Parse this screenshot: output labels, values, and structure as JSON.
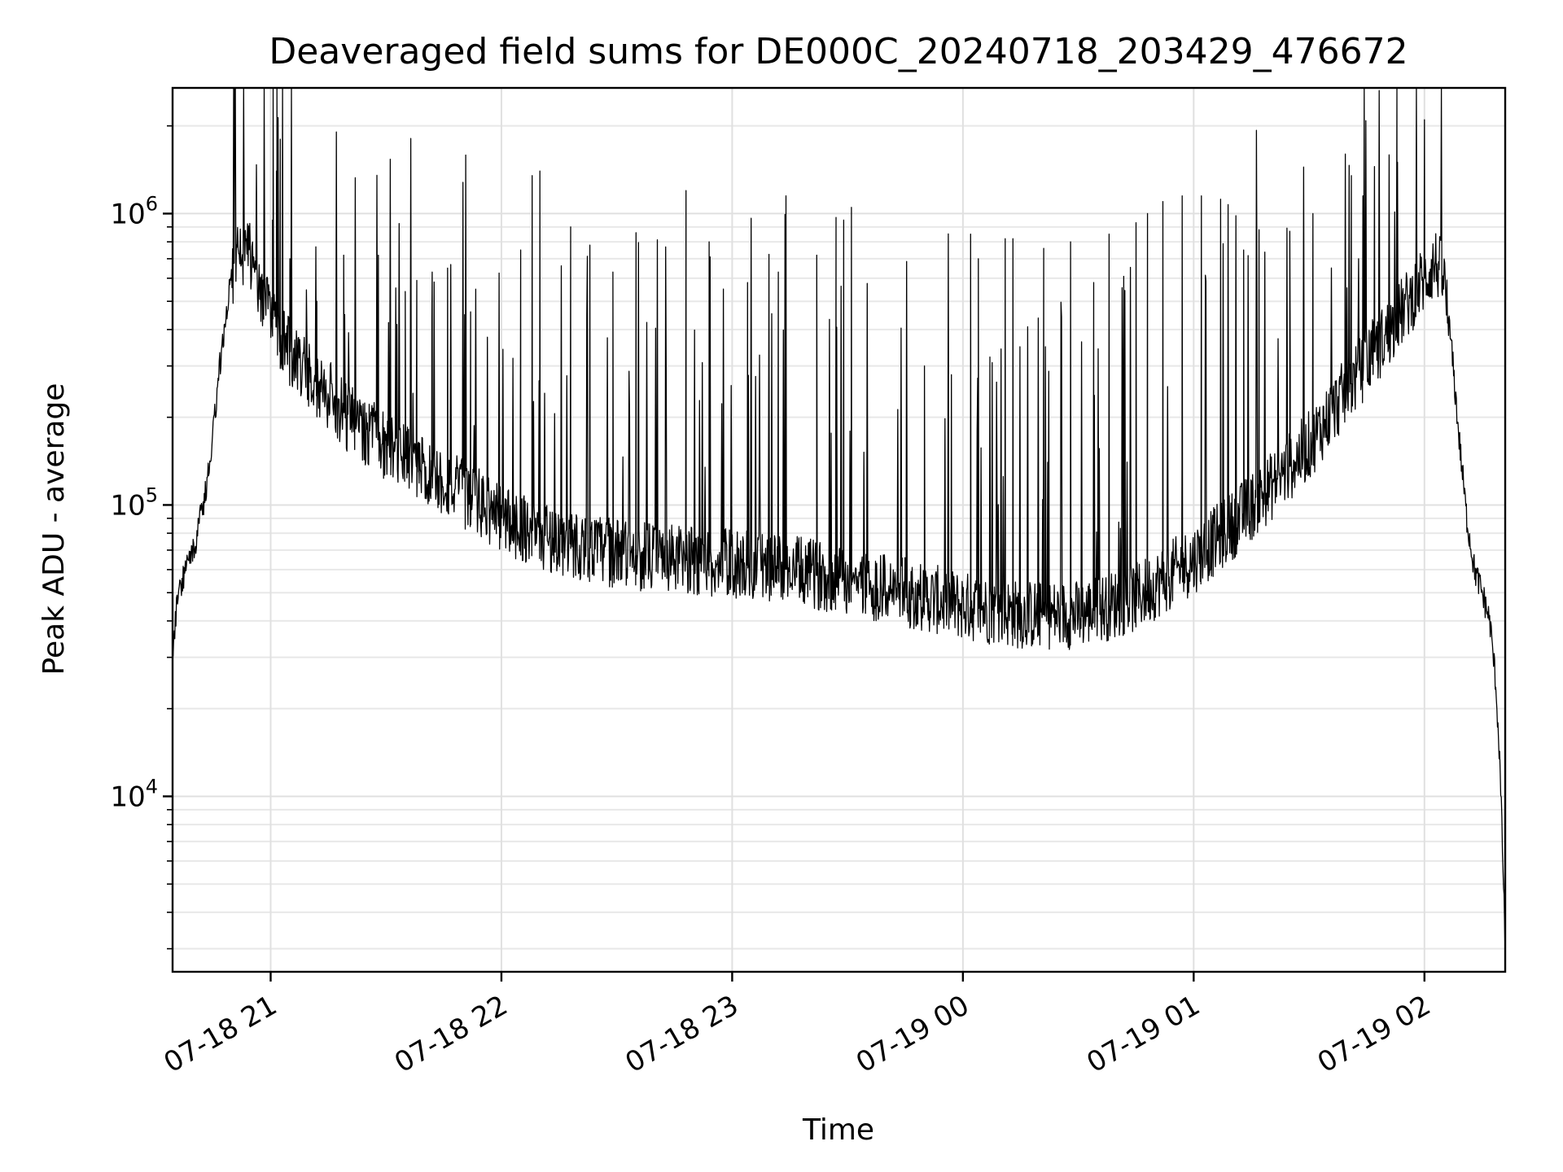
{
  "chart_data": {
    "type": "line",
    "title": "Deaveraged field sums for DE000C_20240718_203429_476672",
    "xlabel": "Time",
    "ylabel": "Peak ADU - average",
    "yscale": "log",
    "grid": "on (major and minor)",
    "legend": "none",
    "xlim": [
      "2024-07-18 20:34:30",
      "2024-07-19 02:21:00"
    ],
    "ylim": [
      2500,
      2700000
    ],
    "x_ticks": [
      {
        "value": "2024-07-18 21:00",
        "label": "07-18 21"
      },
      {
        "value": "2024-07-18 22:00",
        "label": "07-18 22"
      },
      {
        "value": "2024-07-18 23:00",
        "label": "07-18 23"
      },
      {
        "value": "2024-07-19 00:00",
        "label": "07-19 00"
      },
      {
        "value": "2024-07-19 01:00",
        "label": "07-19 01"
      },
      {
        "value": "2024-07-19 02:00",
        "label": "07-19 02"
      }
    ],
    "y_ticks": [
      {
        "value": 10000,
        "base": "10",
        "exp": "4"
      },
      {
        "value": 100000,
        "base": "10",
        "exp": "5"
      },
      {
        "value": 1000000,
        "base": "10",
        "exp": "6"
      }
    ],
    "series": [
      {
        "color": "#000000",
        "baseline": {
          "x": [
            "2024-07-18 20:34:30",
            "2024-07-18 20:35:30",
            "2024-07-18 20:37:00",
            "2024-07-18 20:39:00",
            "2024-07-18 20:41:00",
            "2024-07-18 20:43:00",
            "2024-07-18 20:45:00",
            "2024-07-18 20:47:00",
            "2024-07-18 20:49:00",
            "2024-07-18 20:52:00",
            "2024-07-18 20:54:00",
            "2024-07-18 20:56:00",
            "2024-07-18 20:58:00",
            "2024-07-18 21:00:00",
            "2024-07-18 21:03:00",
            "2024-07-18 21:06:00",
            "2024-07-18 21:10:00",
            "2024-07-18 21:15:00",
            "2024-07-18 21:20:00",
            "2024-07-18 21:30:00",
            "2024-07-18 21:40:00",
            "2024-07-18 21:50:00",
            "2024-07-18 22:00:00",
            "2024-07-18 22:15:00",
            "2024-07-18 22:30:00",
            "2024-07-18 22:45:00",
            "2024-07-18 23:00:00",
            "2024-07-18 23:15:00",
            "2024-07-18 23:30:00",
            "2024-07-18 23:45:00",
            "2024-07-19 00:00:00",
            "2024-07-19 00:15:00",
            "2024-07-19 00:30:00",
            "2024-07-19 00:45:00",
            "2024-07-19 01:00:00",
            "2024-07-19 01:10:00",
            "2024-07-19 01:20:00",
            "2024-07-19 01:30:00",
            "2024-07-19 01:40:00",
            "2024-07-19 01:50:00",
            "2024-07-19 02:00:00",
            "2024-07-19 02:03:00",
            "2024-07-19 02:05:00",
            "2024-07-19 02:07:00",
            "2024-07-19 02:09:00",
            "2024-07-19 02:11:00",
            "2024-07-19 02:13:00",
            "2024-07-19 02:15:00",
            "2024-07-19 02:17:00",
            "2024-07-19 02:18:30",
            "2024-07-19 02:19:30",
            "2024-07-19 02:20:15",
            "2024-07-19 02:21:00"
          ],
          "y": [
            32000,
            45000,
            55000,
            65000,
            80000,
            110000,
            180000,
            320000,
            520000,
            750000,
            750000,
            650000,
            530000,
            450000,
            370000,
            320000,
            280000,
            240000,
            200000,
            160000,
            130000,
            110000,
            90000,
            75000,
            68000,
            65000,
            63000,
            60000,
            55000,
            50000,
            45000,
            42000,
            42000,
            48000,
            65000,
            85000,
            115000,
            160000,
            250000,
            380000,
            600000,
            680000,
            600000,
            350000,
            170000,
            90000,
            60000,
            50000,
            40000,
            25000,
            14000,
            7000,
            3000
          ]
        },
        "spikes": [
          {
            "x": "2024-07-18 21:00:30",
            "y": 950000
          },
          {
            "x": "2024-07-18 21:01:30",
            "y": 1400000
          },
          {
            "x": "2024-07-18 21:02:30",
            "y": 1800000
          },
          {
            "x": "2024-07-18 21:05:00",
            "y": 700000
          },
          {
            "x": "2024-07-18 21:12:00",
            "y": 500000
          },
          {
            "x": "2024-07-18 21:19:00",
            "y": 720000
          },
          {
            "x": "2024-07-18 21:28:00",
            "y": 720000
          },
          {
            "x": "2024-07-18 21:35:00",
            "y": 540000
          },
          {
            "x": "2024-07-18 21:38:00",
            "y": 590000
          },
          {
            "x": "2024-07-18 21:42:00",
            "y": 630000
          },
          {
            "x": "2024-07-18 21:46:00",
            "y": 650000
          },
          {
            "x": "2024-07-18 21:52:00",
            "y": 460000
          },
          {
            "x": "2024-07-18 22:05:00",
            "y": 750000
          },
          {
            "x": "2024-07-18 22:08:00",
            "y": 1350000
          },
          {
            "x": "2024-07-18 22:10:00",
            "y": 1400000
          },
          {
            "x": "2024-07-18 22:18:00",
            "y": 900000
          },
          {
            "x": "2024-07-18 22:23:00",
            "y": 780000
          },
          {
            "x": "2024-07-18 22:29:00",
            "y": 630000
          },
          {
            "x": "2024-07-18 22:35:00",
            "y": 860000
          },
          {
            "x": "2024-07-18 22:48:00",
            "y": 1200000
          },
          {
            "x": "2024-07-18 22:54:00",
            "y": 800000
          },
          {
            "x": "2024-07-18 23:04:00",
            "y": 580000
          },
          {
            "x": "2024-07-18 23:12:00",
            "y": 630000
          },
          {
            "x": "2024-07-18 23:14:00",
            "y": 1150000
          },
          {
            "x": "2024-07-18 23:22:00",
            "y": 720000
          },
          {
            "x": "2024-07-18 23:27:00",
            "y": 970000
          },
          {
            "x": "2024-07-18 23:29:00",
            "y": 950000
          },
          {
            "x": "2024-07-18 23:31:00",
            "y": 1050000
          },
          {
            "x": "2024-07-18 23:50:00",
            "y": 300000
          },
          {
            "x": "2024-07-18 23:57:00",
            "y": 280000
          },
          {
            "x": "2024-07-19 00:02:00",
            "y": 850000
          },
          {
            "x": "2024-07-19 00:04:00",
            "y": 700000
          },
          {
            "x": "2024-07-19 00:11:00",
            "y": 820000
          },
          {
            "x": "2024-07-19 00:13:00",
            "y": 820000
          },
          {
            "x": "2024-07-19 00:21:00",
            "y": 760000
          },
          {
            "x": "2024-07-19 00:28:00",
            "y": 800000
          },
          {
            "x": "2024-07-19 00:34:00",
            "y": 580000
          },
          {
            "x": "2024-07-19 00:38:00",
            "y": 850000
          },
          {
            "x": "2024-07-19 00:45:00",
            "y": 930000
          },
          {
            "x": "2024-07-19 00:48:00",
            "y": 1000000
          },
          {
            "x": "2024-07-19 00:52:00",
            "y": 1100000
          },
          {
            "x": "2024-07-19 00:57:00",
            "y": 1150000
          },
          {
            "x": "2024-07-19 01:02:00",
            "y": 1150000
          },
          {
            "x": "2024-07-19 01:07:00",
            "y": 1120000
          },
          {
            "x": "2024-07-19 01:13:00",
            "y": 750000
          },
          {
            "x": "2024-07-19 01:17:00",
            "y": 880000
          },
          {
            "x": "2024-07-19 01:25:00",
            "y": 870000
          },
          {
            "x": "2024-07-19 01:31:00",
            "y": 1000000
          },
          {
            "x": "2024-07-19 01:41:00",
            "y": 1350000
          },
          {
            "x": "2024-07-19 01:44:00",
            "y": 1150000
          },
          {
            "x": "2024-07-19 01:47:00",
            "y": 1450000
          },
          {
            "x": "2024-07-19 01:53:00",
            "y": 1500000
          },
          {
            "x": "2024-07-19 02:00:00",
            "y": 2100000
          }
        ]
      }
    ]
  }
}
